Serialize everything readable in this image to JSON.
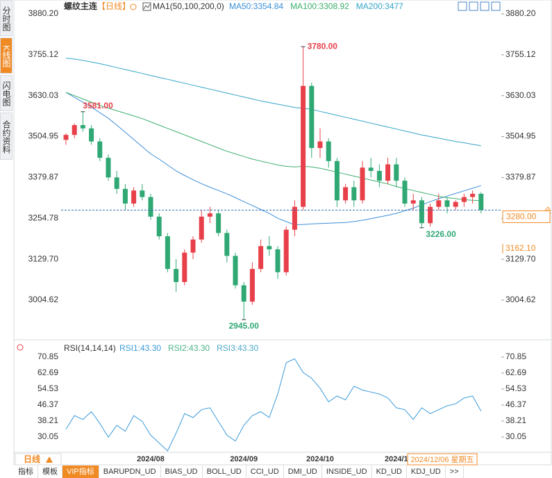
{
  "sidebar": {
    "tabs": [
      "分时图",
      "K线图",
      "闪电图",
      "合约资料"
    ],
    "active": 1
  },
  "header": {
    "symbol": "螺纹主连",
    "period": "【日线】",
    "ma_label": "MA1(50,100,200,0)"
  },
  "footer": {
    "period_button": "日线",
    "tabs": [
      "指标",
      "模板",
      "VIP指标",
      "BARUPDN_UD",
      "BIAS_UD",
      "BOLL_UD",
      "CCI_UD",
      "DMI_UD",
      "INSIDE_UD",
      "KD_UD",
      "KDJ_UD",
      ">>"
    ],
    "active": 2
  },
  "chart_data": [
    {
      "type": "candlestick",
      "categories": [
        null,
        null,
        null,
        null,
        null,
        null,
        null,
        null,
        null,
        null,
        "2024/08",
        null,
        null,
        null,
        null,
        null,
        null,
        null,
        null,
        null,
        null,
        "2024/09",
        null,
        null,
        null,
        null,
        null,
        null,
        null,
        null,
        "2024/10",
        null,
        null,
        null,
        null,
        null,
        null,
        null,
        null,
        "2024/1",
        null,
        null,
        null,
        null,
        null,
        null,
        null,
        null,
        null,
        null
      ],
      "open": [
        3495,
        3510,
        3540,
        3530,
        3490,
        3440,
        3380,
        3345,
        3300,
        3340,
        3320,
        3260,
        3200,
        3100,
        3060,
        3150,
        3190,
        3260,
        3270,
        3210,
        3140,
        3050,
        3000,
        3100,
        3170,
        3160,
        3090,
        3220,
        3290,
        3660,
        3470,
        3490,
        3430,
        3310,
        3350,
        3310,
        3410,
        3400,
        3370,
        3420,
        3370,
        3300,
        3310,
        3240,
        3290,
        3310,
        3290,
        3305,
        3320,
        3330
      ],
      "high": [
        3515,
        3545,
        3581,
        3540,
        3500,
        3450,
        3400,
        3360,
        3350,
        3360,
        3330,
        3270,
        3210,
        3130,
        3160,
        3200,
        3280,
        3290,
        3280,
        3220,
        3150,
        3060,
        3120,
        3190,
        3200,
        3170,
        3230,
        3310,
        3780,
        3670,
        3530,
        3500,
        3440,
        3360,
        3370,
        3430,
        3440,
        3420,
        3440,
        3440,
        3380,
        3330,
        3320,
        3300,
        3330,
        3320,
        3310,
        3330,
        3340,
        3335
      ],
      "low": [
        3480,
        3500,
        3520,
        3480,
        3430,
        3370,
        3330,
        3280,
        3290,
        3310,
        3250,
        3190,
        3090,
        3030,
        3050,
        3130,
        3180,
        3240,
        3200,
        3120,
        3040,
        2945,
        2990,
        3090,
        3140,
        3070,
        3080,
        3200,
        3280,
        3440,
        3440,
        3410,
        3290,
        3300,
        3290,
        3300,
        3380,
        3350,
        3360,
        3350,
        3290,
        3280,
        3226,
        3230,
        3280,
        3270,
        3280,
        3290,
        3300,
        3270
      ],
      "close": [
        3510,
        3540,
        3530,
        3490,
        3440,
        3380,
        3345,
        3300,
        3340,
        3320,
        3260,
        3200,
        3100,
        3060,
        3150,
        3190,
        3260,
        3270,
        3210,
        3140,
        3050,
        3000,
        3100,
        3170,
        3160,
        3090,
        3220,
        3290,
        3660,
        3470,
        3490,
        3430,
        3310,
        3350,
        3310,
        3410,
        3400,
        3370,
        3420,
        3370,
        3300,
        3310,
        3240,
        3290,
        3310,
        3290,
        3305,
        3320,
        3330,
        3280
      ],
      "up_color": "#e8404a",
      "down_color": "#2fa874",
      "series": [
        {
          "name": "MA50:3354.84",
          "color": "#3b8fd9",
          "values": [
            3640,
            3625,
            3610,
            3595,
            3578,
            3561,
            3540,
            3518,
            3496,
            3474,
            3452,
            3436,
            3418,
            3400,
            3386,
            3373,
            3361,
            3350,
            3340,
            3330,
            3318,
            3306,
            3294,
            3282,
            3270,
            3255,
            3245,
            3235,
            3236,
            3238,
            3239,
            3240,
            3241,
            3242,
            3245,
            3249,
            3254,
            3259,
            3264,
            3270,
            3278,
            3286,
            3296,
            3306,
            3315,
            3323,
            3331,
            3339,
            3347,
            3354.84
          ]
        },
        {
          "name": "MA100:3308.92",
          "color": "#3cae6b",
          "values": [
            3640,
            3630,
            3620,
            3610,
            3600,
            3592,
            3584,
            3576,
            3568,
            3560,
            3550,
            3540,
            3530,
            3520,
            3510,
            3500,
            3490,
            3480,
            3470,
            3460,
            3452,
            3444,
            3436,
            3430,
            3424,
            3418,
            3414,
            3412,
            3414,
            3412,
            3408,
            3402,
            3396,
            3390,
            3384,
            3378,
            3372,
            3366,
            3360,
            3352,
            3346,
            3340,
            3334,
            3328,
            3322,
            3318,
            3315,
            3312,
            3310,
            3308.92
          ]
        },
        {
          "name": "MA200:3477",
          "color": "#33a3c8",
          "values": [
            3745,
            3742,
            3738,
            3733,
            3728,
            3722,
            3716,
            3710,
            3704,
            3698,
            3692,
            3686,
            3680,
            3674,
            3668,
            3662,
            3656,
            3650,
            3644,
            3638,
            3632,
            3626,
            3620,
            3614,
            3609,
            3604,
            3599,
            3594,
            3592,
            3588,
            3582,
            3576,
            3570,
            3564,
            3558,
            3552,
            3546,
            3540,
            3534,
            3528,
            3522,
            3516,
            3510,
            3505,
            3500,
            3495,
            3490,
            3486,
            3481,
            3477
          ]
        }
      ],
      "ylim": [
        2885.6,
        3905.7
      ],
      "yticks": [
        {
          "value": 3880.2,
          "label": "3880.20"
        },
        {
          "value": 3755.12,
          "label": "3755.12"
        },
        {
          "value": 3630.03,
          "label": "3630.03"
        },
        {
          "value": 3504.95,
          "label": "3504.95"
        },
        {
          "value": 3379.87,
          "label": "3379.87"
        },
        {
          "value": 3254.78,
          "label": "3254.78"
        },
        {
          "value": 3129.7,
          "label": "3129.70"
        },
        {
          "value": 3004.62,
          "label": "3004.62"
        }
      ],
      "annotations": [
        {
          "value": 3780,
          "label": "3780.00",
          "index": 28
        },
        {
          "value": 3581,
          "label": "3581.00",
          "index": 2
        },
        {
          "value": 3226,
          "label": "3226.00",
          "index": 42
        },
        {
          "value": 2945,
          "label": "2945.00",
          "index": 21
        }
      ],
      "last_price": {
        "value": 3280,
        "label": "3280.00"
      },
      "cursor_price": {
        "value": 3162.1,
        "label": "3162.10"
      },
      "cursor_date": "2024/12/06 星期五"
    },
    {
      "type": "line",
      "title": "RSI(14,14,14)",
      "series": [
        {
          "name": "RSI1:43.30",
          "color": "#3b9ad9",
          "values": [
            34,
            41,
            39,
            43,
            37,
            30,
            36,
            33,
            41,
            38,
            31,
            27,
            23,
            32,
            42,
            40,
            44,
            45,
            38,
            31,
            28,
            36,
            41,
            43,
            40,
            52,
            68,
            70,
            63,
            60,
            55,
            48,
            51,
            49,
            56,
            54,
            53,
            52,
            50,
            45,
            44,
            39,
            45,
            42,
            44,
            46,
            47,
            50,
            51,
            43.3
          ]
        }
      ],
      "extra_legend": [
        {
          "name": "RSI2:43.30",
          "color": "#4cb38a"
        },
        {
          "name": "RSI3:43.30",
          "color": "#4aa8c8"
        }
      ],
      "ylim": [
        22.61,
        78.65
      ],
      "yticks": [
        70.85,
        62.69,
        54.53,
        46.37,
        38.21,
        30.05
      ]
    }
  ]
}
